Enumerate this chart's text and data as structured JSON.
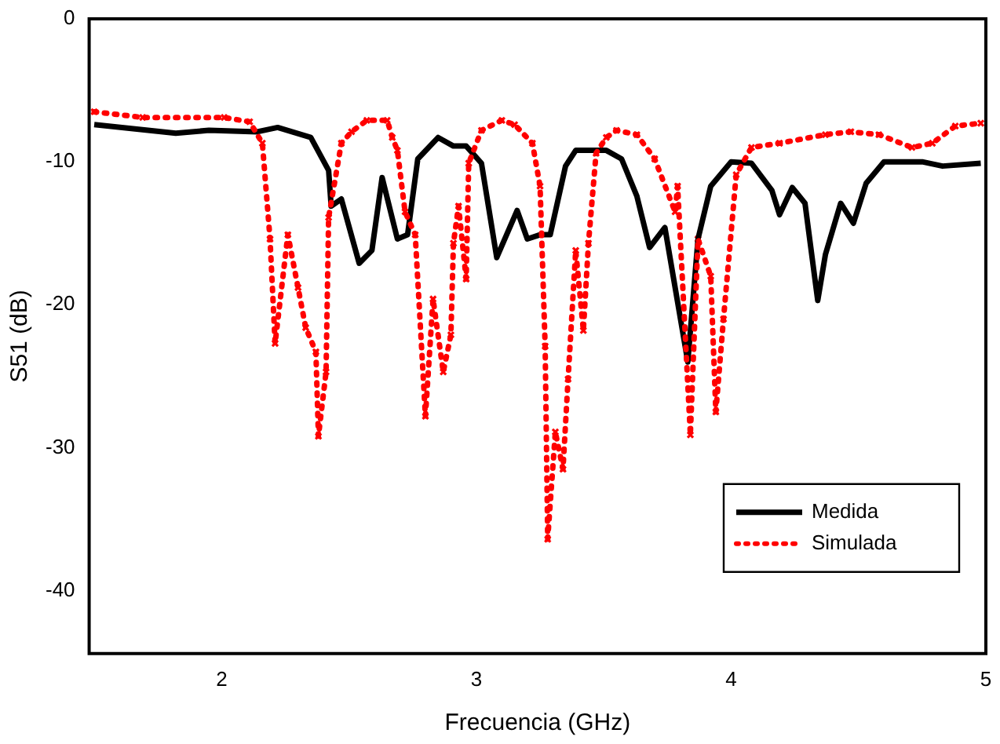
{
  "chart_data": {
    "type": "line",
    "xlabel": "Frecuencia (GHz)",
    "ylabel": "S51 (dB)",
    "xlim": [
      1.48,
      5
    ],
    "xticks": [
      2,
      3,
      4,
      5
    ],
    "ylim": [
      -44.4,
      0
    ],
    "yticks": [
      0,
      -10,
      -20,
      -30,
      -40
    ],
    "grid": false,
    "legend": "bottom right",
    "series": [
      {
        "name": "Medida",
        "color": "#000000",
        "line_style": "solid",
        "marker": "none",
        "x": [
          1.5,
          1.82,
          1.95,
          2.14,
          2.22,
          2.35,
          2.42,
          2.43,
          2.47,
          2.54,
          2.59,
          2.63,
          2.69,
          2.73,
          2.77,
          2.85,
          2.91,
          2.96,
          3.02,
          3.08,
          3.16,
          3.2,
          3.25,
          3.29,
          3.35,
          3.39,
          3.51,
          3.57,
          3.63,
          3.68,
          3.74,
          3.83,
          3.87,
          3.92,
          4.0,
          4.08,
          4.16,
          4.19,
          4.24,
          4.29,
          4.34,
          4.37,
          4.43,
          4.48,
          4.53,
          4.6,
          4.75,
          4.83,
          4.98
        ],
        "values": [
          -7.4,
          -8.0,
          -7.8,
          -7.9,
          -7.6,
          -8.3,
          -10.6,
          -13.1,
          -12.6,
          -17.1,
          -16.2,
          -11.1,
          -15.4,
          -15.1,
          -9.8,
          -8.3,
          -8.9,
          -8.9,
          -10.1,
          -16.7,
          -13.4,
          -15.4,
          -15.1,
          -15.1,
          -10.3,
          -9.2,
          -9.2,
          -9.8,
          -12.4,
          -16.0,
          -14.6,
          -24.0,
          -15.4,
          -11.7,
          -10.0,
          -10.1,
          -12.0,
          -13.7,
          -11.8,
          -12.9,
          -19.7,
          -16.5,
          -12.9,
          -14.3,
          -11.5,
          -10.0,
          -10.0,
          -10.3,
          -10.1
        ]
      },
      {
        "name": "Simulada",
        "color": "#ff0000",
        "line_style": "dotted",
        "marker": "cross",
        "x": [
          1.5,
          1.69,
          2.01,
          2.11,
          2.16,
          2.19,
          2.21,
          2.26,
          2.3,
          2.33,
          2.37,
          2.38,
          2.41,
          2.42,
          2.47,
          2.51,
          2.57,
          2.65,
          2.67,
          2.69,
          2.72,
          2.76,
          2.8,
          2.83,
          2.87,
          2.9,
          2.91,
          2.93,
          2.96,
          2.97,
          3.02,
          3.1,
          3.15,
          3.22,
          3.25,
          3.27,
          3.28,
          3.31,
          3.34,
          3.36,
          3.39,
          3.42,
          3.44,
          3.47,
          3.51,
          3.55,
          3.63,
          3.7,
          3.78,
          3.79,
          3.84,
          3.87,
          3.92,
          3.94,
          3.97,
          4.02,
          4.08,
          4.19,
          4.37,
          4.47,
          4.58,
          4.71,
          4.79,
          4.88,
          4.98
        ],
        "values": [
          -6.5,
          -6.9,
          -6.9,
          -7.2,
          -8.7,
          -15.4,
          -22.7,
          -15.1,
          -18.8,
          -21.6,
          -23.3,
          -29.2,
          -24.7,
          -13.9,
          -8.7,
          -7.9,
          -7.1,
          -7.1,
          -8.3,
          -9.2,
          -13.5,
          -15.1,
          -27.8,
          -19.6,
          -24.7,
          -22.1,
          -15.7,
          -13.1,
          -18.2,
          -10.1,
          -7.8,
          -7.1,
          -7.4,
          -8.7,
          -11.7,
          -22.9,
          -36.4,
          -28.9,
          -31.5,
          -25.2,
          -16.2,
          -21.8,
          -15.7,
          -9.4,
          -8.3,
          -7.8,
          -8.1,
          -9.8,
          -13.5,
          -11.7,
          -29.1,
          -15.4,
          -18.0,
          -27.5,
          -21.0,
          -10.9,
          -9.0,
          -8.7,
          -8.1,
          -7.9,
          -8.1,
          -9.0,
          -8.7,
          -7.5,
          -7.3
        ]
      }
    ]
  }
}
